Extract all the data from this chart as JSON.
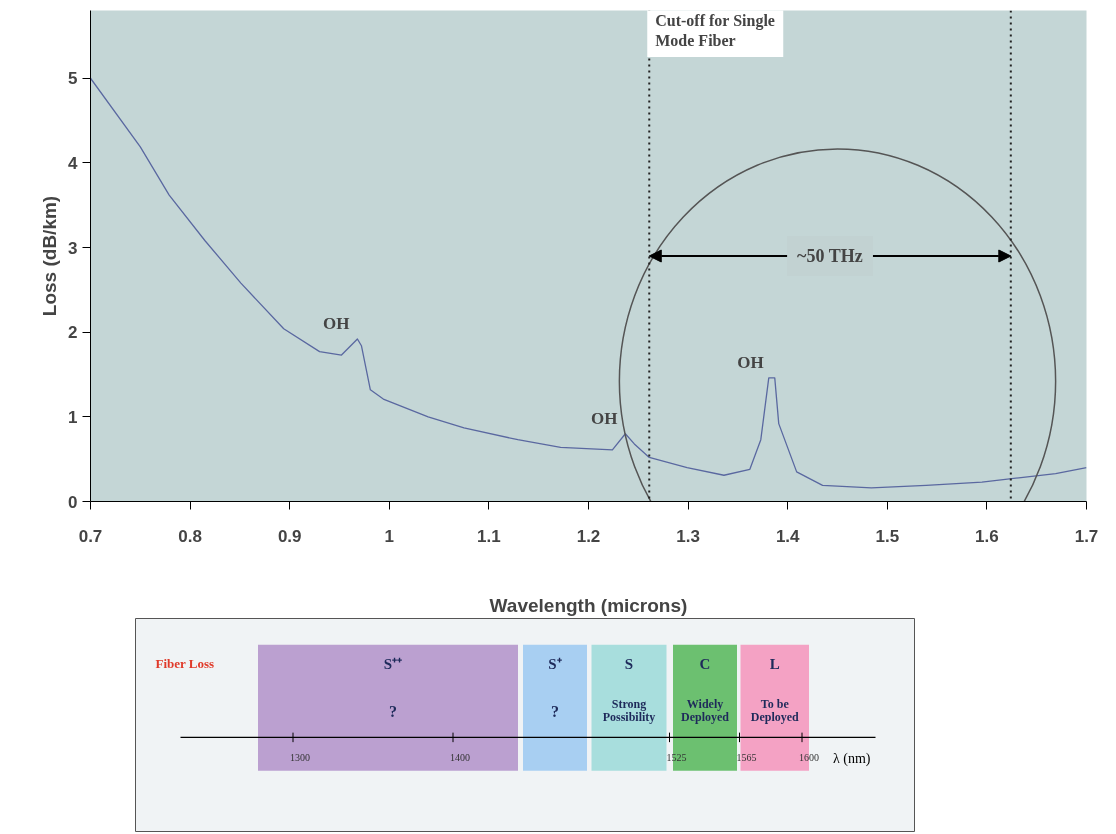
{
  "chart_data": [
    {
      "type": "line",
      "xlabel": "Wavelength (microns)",
      "ylabel": "Loss (dB/km)",
      "x": [
        0.7,
        0.75,
        0.779,
        0.815,
        0.851,
        0.894,
        0.93,
        0.952,
        0.968,
        0.972,
        0.981,
        0.994,
        1.039,
        1.075,
        1.129,
        1.172,
        1.224,
        1.237,
        1.246,
        1.261,
        1.299,
        1.336,
        1.362,
        1.373,
        1.381,
        1.387,
        1.391,
        1.409,
        1.435,
        1.484,
        1.539,
        1.595,
        1.632,
        1.669,
        1.7
      ],
      "series": [
        {
          "color": "#5a68a0",
          "values": [
            5.0,
            4.19,
            3.62,
            3.08,
            2.58,
            2.04,
            1.77,
            1.73,
            1.92,
            1.84,
            1.32,
            1.21,
            1.0,
            0.87,
            0.73,
            0.64,
            0.61,
            0.8,
            0.68,
            0.52,
            0.4,
            0.31,
            0.38,
            0.73,
            1.46,
            1.46,
            0.92,
            0.35,
            0.19,
            0.16,
            0.19,
            0.23,
            0.28,
            0.33,
            0.4
          ]
        }
      ],
      "xlim": [
        0.7,
        1.7
      ],
      "ylim": [
        0,
        5.8
      ],
      "xticks": [
        0.7,
        0.8,
        0.9,
        1,
        1.1,
        1.2,
        1.3,
        1.4,
        1.5,
        1.6,
        1.7
      ],
      "yticks": [
        0,
        1,
        2,
        3,
        4,
        5
      ],
      "grid": false,
      "line_style": "solid",
      "ref_lines": [
        {
          "axis": "x",
          "value": 1.261,
          "label": "Cut-off for Single Mode Fiber",
          "color": "#222222",
          "line_style": "dotted"
        },
        {
          "axis": "x",
          "value": 1.624,
          "label": null,
          "color": "#222222",
          "line_style": "dotted"
        }
      ],
      "annotations": [
        {
          "text": "OH",
          "x": 0.968,
          "y": 1.92
        },
        {
          "text": "OH",
          "x": 1.237,
          "y": 0.8
        },
        {
          "text": "OH",
          "x": 1.384,
          "y": 1.46
        },
        {
          "text": "~50 THz",
          "x": 1.261,
          "y": 2.9
        }
      ]
    },
    {
      "type": "other",
      "xlabel": "λ (nm)",
      "categories": [
        "S⁺⁺",
        "S⁺",
        "S",
        "C",
        "L"
      ],
      "colors": [
        "#bba0d0",
        "#a8cff2",
        "#a8dedd",
        "#6cc070",
        "#f4a2c4"
      ],
      "value_labels": [
        "?",
        "?",
        "Strong Possibility",
        "Widely Deployed",
        "To be Deployed"
      ],
      "annotations": [
        "Fiber Loss",
        "1300",
        "1400",
        "1525",
        "1565",
        "1600"
      ]
    }
  ]
}
